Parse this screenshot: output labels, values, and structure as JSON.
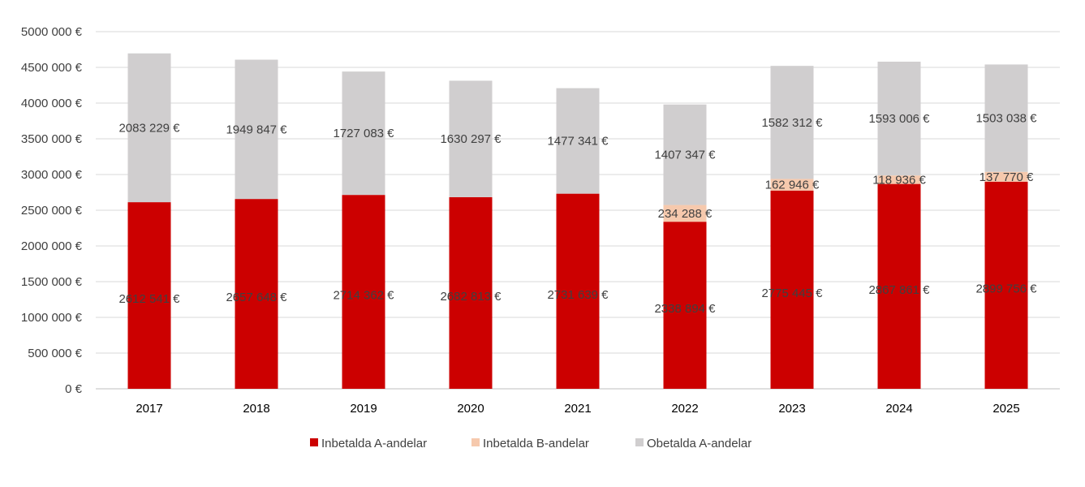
{
  "chart_data": {
    "type": "bar",
    "stacked": true,
    "categories": [
      "2017",
      "2018",
      "2019",
      "2020",
      "2021",
      "2022",
      "2023",
      "2024",
      "2025"
    ],
    "series": [
      {
        "name": "Inbetalda A-andelar",
        "color": "#cc0000",
        "values": [
          2612541,
          2657648,
          2714362,
          2682813,
          2731639,
          2338894,
          2775445,
          2867861,
          2899756
        ],
        "labels": [
          "2612 541 €",
          "2657 648 €",
          "2714 362 €",
          "2682 813 €",
          "2731 639 €",
          "2338 894 €",
          "2775 445 €",
          "2867 861 €",
          "2899 756 €"
        ]
      },
      {
        "name": "Inbetalda B-andelar",
        "color": "#f6c9ad",
        "values": [
          0,
          0,
          0,
          0,
          0,
          234288,
          162946,
          118936,
          137770
        ],
        "labels": [
          "",
          "",
          "",
          "",
          "",
          "234 288 €",
          "162 946 €",
          "118 936 €",
          "137 770 €"
        ]
      },
      {
        "name": "Obetalda A-andelar",
        "color": "#d0cecf",
        "values": [
          2083229,
          1949847,
          1727083,
          1630297,
          1477341,
          1407347,
          1582312,
          1593006,
          1503038
        ],
        "labels": [
          "2083 229 €",
          "1949 847 €",
          "1727 083 €",
          "1630 297 €",
          "1477 341 €",
          "1407 347 €",
          "1582 312 €",
          "1593 006 €",
          "1503 038 €"
        ]
      }
    ],
    "ylim": [
      0,
      5000000
    ],
    "yticks": [
      0,
      500000,
      1000000,
      1500000,
      2000000,
      2500000,
      3000000,
      3500000,
      4000000,
      4500000,
      5000000
    ],
    "ytick_labels": [
      "0 €",
      "500 000 €",
      "1000 000 €",
      "1500 000 €",
      "2000 000 €",
      "2500 000 €",
      "3000 000 €",
      "3500 000 €",
      "4000 000 €",
      "4500 000 €",
      "5000 000 €"
    ],
    "title": "",
    "xlabel": "",
    "ylabel": "",
    "grid": true,
    "legend_position": "bottom",
    "gridline_color": "#d9d9d9",
    "text_color": "#404040"
  }
}
